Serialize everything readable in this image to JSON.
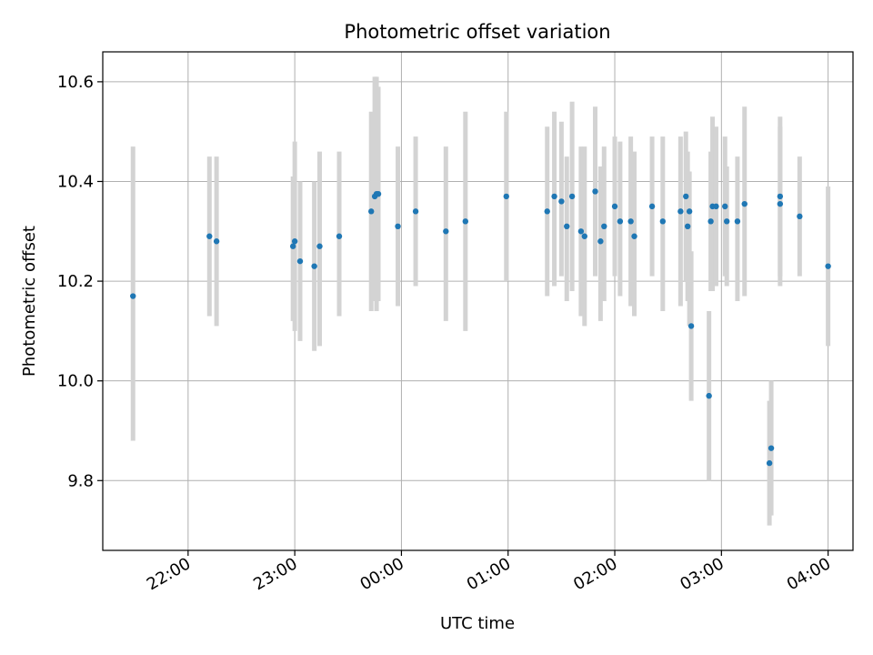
{
  "chart_data": {
    "type": "scatter",
    "title": "Photometric offset variation",
    "xlabel": "UTC time",
    "ylabel": "Photometric offset",
    "x_tick_labels": [
      "22:00",
      "23:00",
      "00:00",
      "01:00",
      "02:00",
      "03:00",
      "04:00"
    ],
    "y_tick_labels": [
      "9.8",
      "10.0",
      "10.2",
      "10.4",
      "10.6"
    ],
    "xlim": [
      "21:12",
      "04:14"
    ],
    "ylim": [
      9.66,
      10.66
    ],
    "grid": true,
    "colors": {
      "point": "#1f77b4",
      "errorbar": "#d3d3d3",
      "grid": "#b0b0b0"
    },
    "series": [
      {
        "x": [
          "21:29",
          "22:12",
          "22:16",
          "22:59",
          "23:00",
          "23:03",
          "23:11",
          "23:14",
          "23:25",
          "23:43",
          "23:45",
          "23:46",
          "23:47",
          "23:58",
          "00:08",
          "00:25",
          "00:36",
          "00:59",
          "01:22",
          "01:26",
          "01:30",
          "01:33",
          "01:36",
          "01:41",
          "01:43",
          "01:49",
          "01:52",
          "01:54",
          "02:00",
          "02:03",
          "02:09",
          "02:11",
          "02:21",
          "02:27",
          "02:37",
          "02:40",
          "02:41",
          "02:42",
          "02:43",
          "02:53",
          "02:54",
          "02:55",
          "02:57",
          "03:02",
          "03:03",
          "03:09",
          "03:13",
          "03:27",
          "03:28",
          "03:33",
          "03:33",
          "03:44",
          "04:00"
        ],
        "y": [
          10.17,
          10.29,
          10.28,
          10.27,
          10.28,
          10.24,
          10.23,
          10.27,
          10.29,
          10.34,
          10.37,
          10.375,
          10.375,
          10.31,
          10.34,
          10.3,
          10.32,
          10.37,
          10.34,
          10.37,
          10.36,
          10.31,
          10.37,
          10.3,
          10.29,
          10.38,
          10.28,
          10.31,
          10.35,
          10.32,
          10.32,
          10.29,
          10.35,
          10.32,
          10.34,
          10.37,
          10.31,
          10.34,
          10.11,
          9.97,
          10.32,
          10.35,
          10.35,
          10.35,
          10.32,
          10.32,
          10.355,
          9.835,
          9.865,
          10.355,
          10.37,
          10.33,
          10.23
        ],
        "err_low": [
          9.88,
          10.13,
          10.11,
          10.12,
          10.1,
          10.08,
          10.06,
          10.07,
          10.13,
          10.14,
          10.16,
          10.14,
          10.16,
          10.15,
          10.19,
          10.12,
          10.1,
          10.2,
          10.17,
          10.19,
          10.21,
          10.16,
          10.18,
          10.13,
          10.11,
          10.21,
          10.12,
          10.16,
          10.21,
          10.17,
          10.15,
          10.13,
          10.21,
          10.14,
          10.15,
          10.2,
          10.16,
          10.11,
          9.96,
          9.8,
          10.18,
          10.18,
          10.19,
          10.21,
          10.19,
          10.16,
          10.17,
          9.71,
          9.73,
          10.19,
          10.21,
          10.21,
          10.07
        ],
        "err_high": [
          10.47,
          10.45,
          10.45,
          10.41,
          10.48,
          10.4,
          10.4,
          10.46,
          10.46,
          10.54,
          10.61,
          10.61,
          10.59,
          10.47,
          10.49,
          10.47,
          10.54,
          10.54,
          10.51,
          10.54,
          10.52,
          10.45,
          10.56,
          10.47,
          10.47,
          10.55,
          10.43,
          10.47,
          10.49,
          10.48,
          10.49,
          10.46,
          10.49,
          10.49,
          10.49,
          10.5,
          10.46,
          10.42,
          10.26,
          10.14,
          10.46,
          10.53,
          10.51,
          10.49,
          10.43,
          10.45,
          10.55,
          9.96,
          10.0,
          10.51,
          10.53,
          10.45,
          10.39
        ]
      }
    ]
  }
}
